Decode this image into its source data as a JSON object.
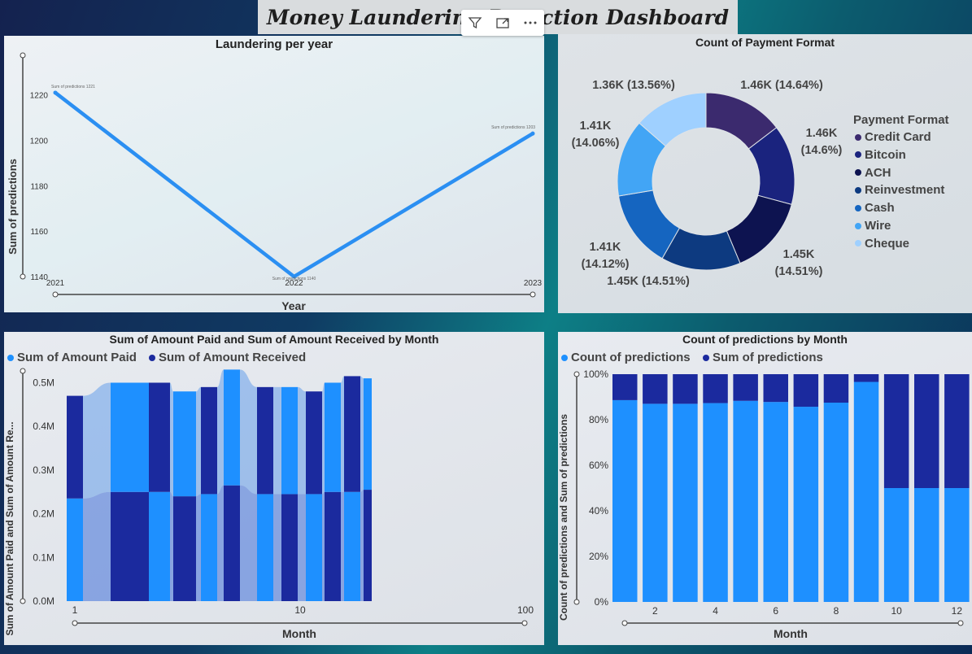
{
  "dashboard": {
    "title": "Money Laundering Detection Dashboard"
  },
  "toolbar": {
    "filter_icon": "filter-icon",
    "focus_icon": "focus-mode-icon",
    "more_icon": "more-options-icon"
  },
  "colors": {
    "line": "#2b8ff2",
    "paid": "#1e90ff",
    "received": "#1b2a9e",
    "pie": [
      "#3b2a6e",
      "#1a237e",
      "#0d1350",
      "#0d3a80",
      "#1565c0",
      "#42a5f5",
      "#9fd0ff"
    ]
  },
  "chart_data": [
    {
      "type": "line",
      "title": "Laundering per year",
      "xlabel": "Year",
      "ylabel": "Sum of predictions",
      "x": [
        "2021",
        "2022",
        "2023"
      ],
      "values": [
        1221,
        1140,
        1203
      ],
      "data_labels": [
        "Sum of predictions 1221",
        "Sum of predictions 1140",
        "Sum of predictions 1203"
      ],
      "yticks": [
        "1140",
        "1160",
        "1180",
        "1200",
        "1220"
      ],
      "ylim": [
        1140,
        1226
      ]
    },
    {
      "type": "pie",
      "title": "Count of Payment Format",
      "legend_title": "Payment Format",
      "legend_position": "right",
      "categories": [
        "Credit Card",
        "Bitcoin",
        "ACH",
        "Reinvestment",
        "Cash",
        "Wire",
        "Cheque"
      ],
      "values": [
        1460,
        1455,
        1450,
        1450,
        1410,
        1405,
        1355
      ],
      "labels": [
        [
          "1.46K (14.64%)"
        ],
        [
          "1.46K",
          "(14.6%)"
        ],
        [
          "1.45K",
          "(14.51%)"
        ],
        [
          "1.45K (14.51%)"
        ],
        [
          "1.41K",
          "(14.12%)"
        ],
        [
          "1.41K",
          "(14.06%)"
        ],
        [
          "1.36K (13.56%)"
        ]
      ]
    },
    {
      "type": "area",
      "title": "Sum of Amount Paid and Sum of Amount Received by Month",
      "xlabel": "Month",
      "ylabel": "Sum of Amount Paid and Sum of Amount Re...",
      "legend_position": "top-left",
      "x": [
        1,
        2,
        3,
        4,
        5,
        6,
        7,
        8,
        9,
        10,
        11,
        12
      ],
      "series": [
        {
          "name": "Sum of Amount Paid",
          "values": [
            235000,
            250000,
            250000,
            240000,
            245000,
            265000,
            245000,
            245000,
            245000,
            250000,
            250000,
            255000
          ]
        },
        {
          "name": "Sum of Amount Received",
          "values": [
            235000,
            250000,
            250000,
            240000,
            245000,
            265000,
            245000,
            245000,
            235000,
            250000,
            265000,
            255000
          ]
        }
      ],
      "yticks": [
        "0.0M",
        "0.1M",
        "0.2M",
        "0.3M",
        "0.4M",
        "0.5M"
      ],
      "xticks": [
        "1",
        "10",
        "100"
      ],
      "ylim": [
        0,
        540000
      ]
    },
    {
      "type": "bar",
      "title": "Count of predictions by Month",
      "xlabel": "Month",
      "ylabel": "Count of predictions and Sum of predictions",
      "legend_position": "top-left",
      "categories": [
        1,
        2,
        3,
        4,
        5,
        6,
        7,
        8,
        9,
        10,
        11,
        12
      ],
      "series": [
        {
          "name": "Count of predictions",
          "values": [
            88.6,
            87.0,
            87.0,
            87.3,
            88.3,
            87.8,
            85.7,
            87.5,
            96.6,
            50,
            50,
            50
          ]
        },
        {
          "name": "Sum of predictions",
          "values": [
            11.4,
            13.0,
            13.0,
            12.7,
            11.7,
            12.2,
            14.3,
            12.5,
            3.4,
            50,
            50,
            50
          ]
        }
      ],
      "yticks": [
        "0%",
        "20%",
        "40%",
        "60%",
        "80%",
        "100%"
      ],
      "xticks": [
        "2",
        "4",
        "6",
        "8",
        "10",
        "12"
      ]
    }
  ]
}
